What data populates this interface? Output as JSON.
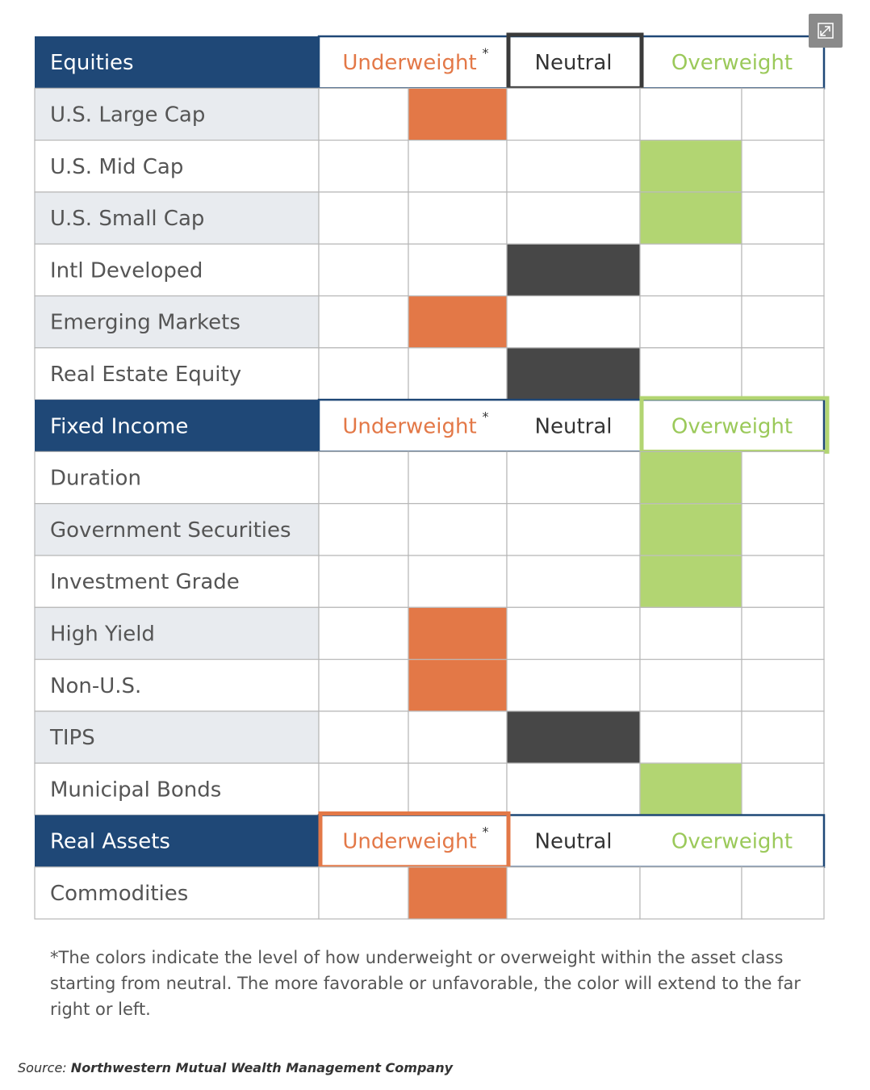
{
  "chart_data": {
    "type": "table",
    "columns": [
      "Underweight*",
      "Neutral",
      "Overweight"
    ],
    "level_scale": {
      "-2": "strong underweight",
      "-1": "underweight",
      "0": "neutral",
      "1": "overweight",
      "2": "strong overweight"
    },
    "colors": {
      "header_bg": "#1f4877",
      "header_text": "#ffffff",
      "underweight": "#e37847",
      "neutral": "#474747",
      "overweight": "#b2d572",
      "row_shaded": "#e8ebef",
      "grid": "#b7b7b7"
    },
    "sections": [
      {
        "title": "Equities",
        "highlight": "neutral",
        "labels": {
          "underweight": "Underweight",
          "neutral": "Neutral",
          "overweight": "Overweight",
          "asterisk": "*"
        },
        "rows": [
          {
            "name": "U.S. Large Cap",
            "level": -1
          },
          {
            "name": "U.S. Mid Cap",
            "level": 1
          },
          {
            "name": "U.S. Small Cap",
            "level": 1
          },
          {
            "name": "Intl Developed",
            "level": 0
          },
          {
            "name": "Emerging Markets",
            "level": -1
          },
          {
            "name": "Real Estate Equity",
            "level": 0
          }
        ]
      },
      {
        "title": "Fixed Income",
        "highlight": "overweight",
        "labels": {
          "underweight": "Underweight",
          "neutral": "Neutral",
          "overweight": "Overweight",
          "asterisk": "*"
        },
        "rows": [
          {
            "name": "Duration",
            "level": 1
          },
          {
            "name": "Government Securities",
            "level": 1
          },
          {
            "name": "Investment Grade",
            "level": 1
          },
          {
            "name": "High Yield",
            "level": -1
          },
          {
            "name": "Non-U.S.",
            "level": -1
          },
          {
            "name": "TIPS",
            "level": 0
          },
          {
            "name": "Municipal Bonds",
            "level": 1
          }
        ]
      },
      {
        "title": "Real Assets",
        "highlight": "underweight",
        "labels": {
          "underweight": "Underweight",
          "neutral": "Neutral",
          "overweight": "Overweight",
          "asterisk": "*"
        },
        "rows": [
          {
            "name": "Commodities",
            "level": -1
          }
        ]
      }
    ]
  },
  "footnote": "*The colors indicate the level of how underweight or overweight within the asset class starting from neutral. The more favorable or unfavorable, the color will extend to the far right or left.",
  "source": {
    "prefix": "Source:",
    "name": "Northwestern Mutual Wealth Management Company"
  },
  "icons": {
    "expand": "expand-icon"
  }
}
